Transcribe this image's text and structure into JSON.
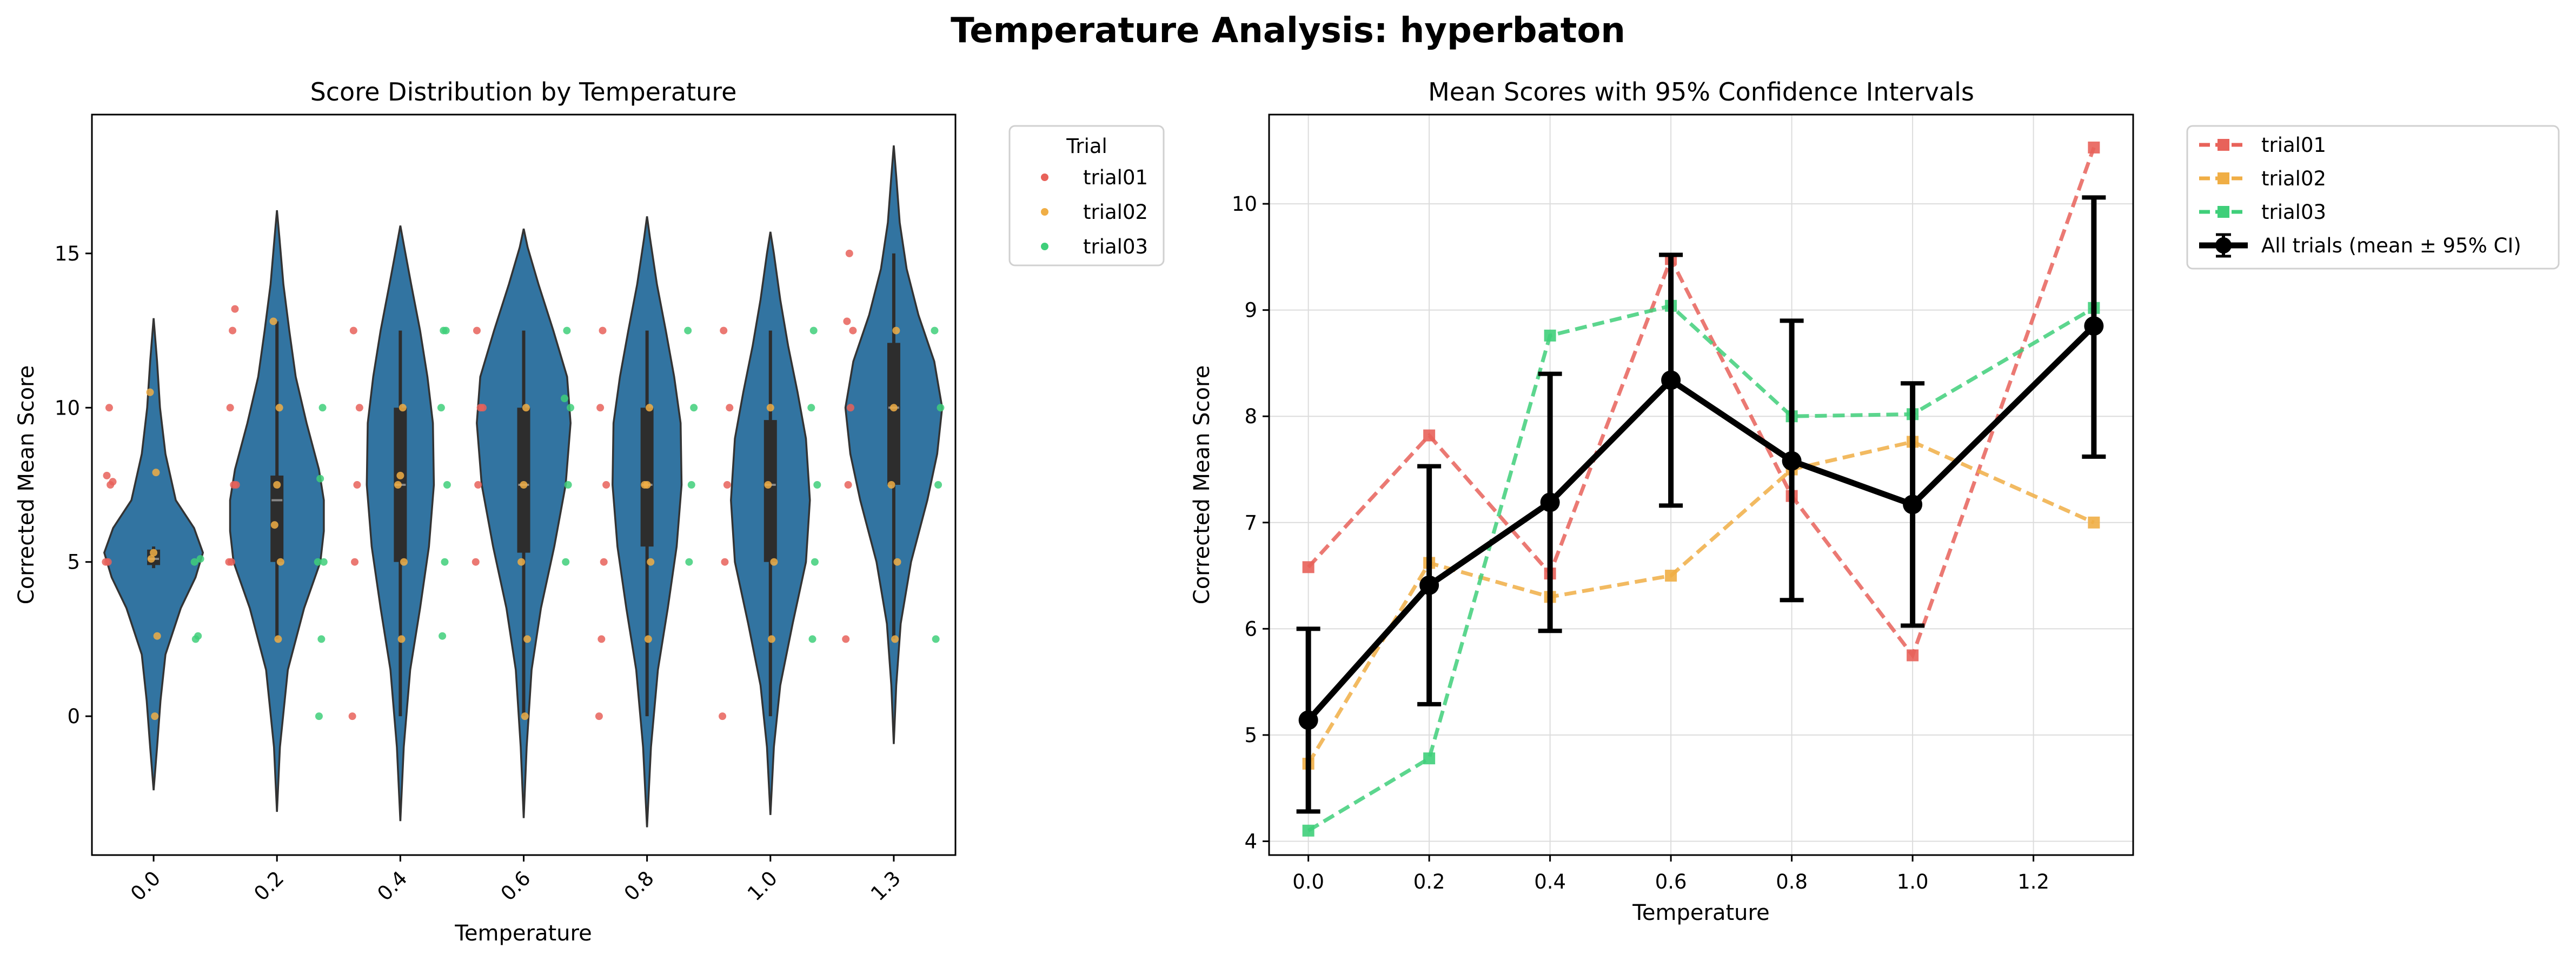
{
  "figure": {
    "title": "Temperature Analysis: hyperbaton"
  },
  "colors": {
    "violin_fill": "#3274a1",
    "violin_edge": "#333333",
    "box": "#2d2d2d",
    "trial01": "#e8625a",
    "trial02": "#f0ae45",
    "trial03": "#3fcf7a",
    "mean": "#000000"
  },
  "chart_data": [
    {
      "type": "violin",
      "title": "Score Distribution by Temperature",
      "xlabel": "Temperature",
      "ylabel": "Corrected Mean Score",
      "categories": [
        "0.0",
        "0.2",
        "0.4",
        "0.6",
        "0.8",
        "1.0",
        "1.3"
      ],
      "ylim": [
        -4.5,
        19.5
      ],
      "yticks": [
        0,
        5,
        10,
        15
      ],
      "legend": {
        "title": "Trial",
        "entries": [
          "trial01",
          "trial02",
          "trial03"
        ],
        "location": "outside upper right"
      },
      "violins": [
        {
          "category": "0.0",
          "min": -2.4,
          "max": 12.9,
          "q1": 4.9,
          "median": 5.1,
          "q3": 5.4,
          "whisker_low": 4.8,
          "whisker_high": 5.5,
          "density": [
            [
              -2.4,
              0.0
            ],
            [
              -1,
              0.07
            ],
            [
              0.5,
              0.14
            ],
            [
              2,
              0.24
            ],
            [
              3.5,
              0.55
            ],
            [
              4.5,
              0.85
            ],
            [
              5.3,
              1.0
            ],
            [
              6.1,
              0.82
            ],
            [
              7,
              0.45
            ],
            [
              8.5,
              0.24
            ],
            [
              10,
              0.13
            ],
            [
              11.5,
              0.07
            ],
            [
              12.9,
              0.0
            ]
          ]
        },
        {
          "category": "0.2",
          "min": -3.1,
          "max": 16.4,
          "q1": 5.0,
          "median": 7.0,
          "q3": 7.8,
          "whisker_low": 2.5,
          "whisker_high": 12.8,
          "density": [
            [
              -3.1,
              0.0
            ],
            [
              -1,
              0.06
            ],
            [
              1.5,
              0.22
            ],
            [
              3.5,
              0.55
            ],
            [
              5,
              0.88
            ],
            [
              6,
              0.95
            ],
            [
              7,
              0.95
            ],
            [
              8,
              0.85
            ],
            [
              9.5,
              0.6
            ],
            [
              11,
              0.38
            ],
            [
              12.5,
              0.25
            ],
            [
              14,
              0.13
            ],
            [
              15.5,
              0.05
            ],
            [
              16.4,
              0.0
            ]
          ]
        },
        {
          "category": "0.4",
          "min": -3.4,
          "max": 15.9,
          "q1": 5.0,
          "median": 7.5,
          "q3": 10.0,
          "whisker_low": 0.0,
          "whisker_high": 12.5,
          "density": [
            [
              -3.4,
              0.0
            ],
            [
              -1,
              0.07
            ],
            [
              1.5,
              0.2
            ],
            [
              3.5,
              0.4
            ],
            [
              5.5,
              0.58
            ],
            [
              7.5,
              0.68
            ],
            [
              9.5,
              0.66
            ],
            [
              11,
              0.55
            ],
            [
              12.5,
              0.4
            ],
            [
              14,
              0.22
            ],
            [
              15.2,
              0.08
            ],
            [
              15.9,
              0.0
            ]
          ]
        },
        {
          "category": "0.6",
          "min": -3.3,
          "max": 15.8,
          "q1": 5.3,
          "median": 7.5,
          "q3": 10.0,
          "whisker_low": 0.0,
          "whisker_high": 12.5,
          "density": [
            [
              -3.3,
              0.0
            ],
            [
              -1,
              0.06
            ],
            [
              1.5,
              0.16
            ],
            [
              3.5,
              0.35
            ],
            [
              5.5,
              0.62
            ],
            [
              7.5,
              0.85
            ],
            [
              9.5,
              0.95
            ],
            [
              11,
              0.88
            ],
            [
              12.5,
              0.6
            ],
            [
              14,
              0.3
            ],
            [
              15.2,
              0.08
            ],
            [
              15.8,
              0.0
            ]
          ]
        },
        {
          "category": "0.8",
          "min": -3.6,
          "max": 16.2,
          "q1": 5.5,
          "median": 7.5,
          "q3": 10.0,
          "whisker_low": 0.0,
          "whisker_high": 12.5,
          "density": [
            [
              -3.6,
              0.0
            ],
            [
              -1,
              0.08
            ],
            [
              1.5,
              0.22
            ],
            [
              3.5,
              0.42
            ],
            [
              5.5,
              0.6
            ],
            [
              7.5,
              0.7
            ],
            [
              9.5,
              0.68
            ],
            [
              11,
              0.55
            ],
            [
              12.5,
              0.38
            ],
            [
              14,
              0.2
            ],
            [
              15.5,
              0.06
            ],
            [
              16.2,
              0.0
            ]
          ]
        },
        {
          "category": "1.0",
          "min": -3.2,
          "max": 15.7,
          "q1": 5.0,
          "median": 7.5,
          "q3": 9.6,
          "whisker_low": 0.0,
          "whisker_high": 12.5,
          "density": [
            [
              -3.2,
              0.0
            ],
            [
              -1,
              0.07
            ],
            [
              1,
              0.2
            ],
            [
              3,
              0.45
            ],
            [
              5,
              0.72
            ],
            [
              7,
              0.8
            ],
            [
              9,
              0.72
            ],
            [
              10.5,
              0.55
            ],
            [
              12,
              0.36
            ],
            [
              13.5,
              0.2
            ],
            [
              15,
              0.07
            ],
            [
              15.7,
              0.0
            ]
          ]
        },
        {
          "category": "1.3",
          "min": -0.9,
          "max": 18.5,
          "q1": 7.5,
          "median": 10.0,
          "q3": 12.1,
          "whisker_low": 2.5,
          "whisker_high": 15.0,
          "density": [
            [
              -0.9,
              0.0
            ],
            [
              1,
              0.05
            ],
            [
              3,
              0.14
            ],
            [
              5,
              0.35
            ],
            [
              7,
              0.68
            ],
            [
              8.5,
              0.88
            ],
            [
              10,
              0.98
            ],
            [
              11.5,
              0.82
            ],
            [
              13,
              0.5
            ],
            [
              14.5,
              0.26
            ],
            [
              16,
              0.12
            ],
            [
              17.5,
              0.05
            ],
            [
              18.5,
              0.0
            ]
          ]
        }
      ],
      "points": [
        {
          "category": "0.0",
          "trial01": [
            5.0,
            5.0,
            7.5,
            7.6,
            7.8,
            10.0
          ],
          "trial02": [
            0.0,
            2.6,
            5.1,
            5.3,
            7.9,
            10.5
          ],
          "trial03": [
            2.5,
            2.6,
            5.1,
            5.0
          ]
        },
        {
          "category": "0.2",
          "trial01": [
            5.0,
            5.0,
            7.5,
            7.5,
            10.0,
            12.5,
            13.2
          ],
          "trial02": [
            2.5,
            5.0,
            6.2,
            7.5,
            10.0,
            12.8
          ],
          "trial03": [
            0.0,
            2.5,
            5.0,
            5.0,
            7.7,
            10.0
          ]
        },
        {
          "category": "0.4",
          "trial01": [
            0.0,
            5.0,
            7.5,
            10.0,
            12.5
          ],
          "trial02": [
            2.5,
            5.0,
            7.5,
            7.8,
            10.0
          ],
          "trial03": [
            2.6,
            5.0,
            7.5,
            10.0,
            12.5,
            12.5
          ]
        },
        {
          "category": "0.6",
          "trial01": [
            5.0,
            7.5,
            10.0,
            10.0,
            12.5
          ],
          "trial02": [
            0.0,
            2.5,
            5.0,
            7.5,
            10.0
          ],
          "trial03": [
            5.0,
            7.5,
            10.0,
            10.3,
            12.5
          ]
        },
        {
          "category": "0.8",
          "trial01": [
            0.0,
            2.5,
            5.0,
            7.5,
            10.0,
            12.5
          ],
          "trial02": [
            2.5,
            5.0,
            7.5,
            7.5,
            10.0
          ],
          "trial03": [
            5.0,
            7.5,
            10.0,
            12.5
          ]
        },
        {
          "category": "1.0",
          "trial01": [
            0.0,
            5.0,
            7.5,
            10.0,
            12.5
          ],
          "trial02": [
            2.5,
            5.0,
            7.5,
            10.0
          ],
          "trial03": [
            2.5,
            5.0,
            7.5,
            10.0,
            12.5
          ]
        },
        {
          "category": "1.3",
          "trial01": [
            2.5,
            7.5,
            10.0,
            12.5,
            12.8,
            15.0
          ],
          "trial02": [
            2.5,
            5.0,
            7.5,
            10.0,
            12.5
          ],
          "trial03": [
            2.5,
            7.5,
            10.0,
            12.5
          ]
        }
      ]
    },
    {
      "type": "line",
      "title": "Mean Scores with 95% Confidence Intervals",
      "xlabel": "Temperature",
      "ylabel": "Corrected Mean Score",
      "x": [
        0.0,
        0.2,
        0.4,
        0.6,
        0.8,
        1.0,
        1.3
      ],
      "xlim": [
        -0.065,
        1.365
      ],
      "xticks": [
        0.0,
        0.2,
        0.4,
        0.6,
        0.8,
        1.0,
        1.2
      ],
      "xtick_labels": [
        "0.0",
        "0.2",
        "0.4",
        "0.6",
        "0.8",
        "1.0",
        "1.2"
      ],
      "ylim": [
        3.87,
        10.84
      ],
      "yticks": [
        4,
        5,
        6,
        7,
        8,
        9,
        10
      ],
      "grid": true,
      "legend_location": "outside upper right",
      "series": [
        {
          "name": "trial01",
          "style": "dashed-square",
          "values": [
            6.58,
            7.82,
            6.52,
            9.48,
            7.25,
            5.75,
            10.53
          ]
        },
        {
          "name": "trial02",
          "style": "dashed-square",
          "values": [
            4.73,
            6.62,
            6.3,
            6.5,
            7.5,
            7.76,
            7.0
          ]
        },
        {
          "name": "trial03",
          "style": "dashed-square",
          "values": [
            4.1,
            4.78,
            8.76,
            9.04,
            8.0,
            8.02,
            9.02
          ]
        }
      ],
      "mean": {
        "name": "All trials (mean ± 95% CI)",
        "values": [
          5.14,
          6.41,
          7.19,
          8.34,
          7.58,
          7.17,
          8.85
        ],
        "ci_low": [
          4.28,
          5.29,
          5.98,
          7.16,
          6.27,
          6.03,
          7.62
        ],
        "ci_high": [
          6.0,
          7.53,
          8.4,
          9.52,
          8.9,
          8.31,
          10.06
        ]
      }
    }
  ]
}
